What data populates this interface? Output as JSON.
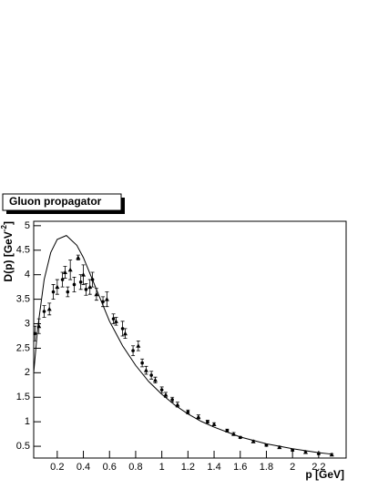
{
  "chart_data": {
    "type": "scatter",
    "title": "Gluon propagator",
    "xlabel": "p [GeV]",
    "ylabel": [
      "D(p) [GeV",
      "-2",
      "]"
    ],
    "xlim": [
      0.02,
      2.41
    ],
    "ylim": [
      0.26,
      5.09
    ],
    "xticks": [
      0.2,
      0.4,
      0.6,
      0.8,
      1,
      1.2,
      1.4,
      1.6,
      1.8,
      2,
      2.2
    ],
    "yticks": [
      0.5,
      1,
      1.5,
      2,
      2.5,
      3,
      3.5,
      4,
      4.5,
      5
    ],
    "curve": {
      "x": [
        0.02,
        0.05,
        0.1,
        0.15,
        0.2,
        0.27,
        0.35,
        0.4,
        0.5,
        0.6,
        0.7,
        0.8,
        0.9,
        1.0,
        1.1,
        1.2,
        1.3,
        1.4,
        1.6,
        1.8,
        2.0,
        2.2,
        2.3
      ],
      "y": [
        2.0,
        2.9,
        3.9,
        4.45,
        4.72,
        4.8,
        4.6,
        4.35,
        3.7,
        3.05,
        2.55,
        2.15,
        1.82,
        1.56,
        1.34,
        1.16,
        1.01,
        0.89,
        0.69,
        0.55,
        0.45,
        0.37,
        0.34
      ],
      "color": "#000000"
    },
    "points": {
      "x": [
        0.03,
        0.06,
        0.1,
        0.14,
        0.17,
        0.2,
        0.24,
        0.26,
        0.28,
        0.3,
        0.33,
        0.36,
        0.38,
        0.4,
        0.42,
        0.45,
        0.47,
        0.5,
        0.55,
        0.58,
        0.63,
        0.65,
        0.7,
        0.72,
        0.78,
        0.82,
        0.85,
        0.88,
        0.92,
        0.95,
        1.0,
        1.03,
        1.08,
        1.12,
        1.2,
        1.28,
        1.35,
        1.4,
        1.5,
        1.55,
        1.6,
        1.7,
        1.8,
        1.9,
        2.0,
        2.1,
        2.2,
        2.3
      ],
      "values": [
        2.8,
        2.95,
        3.25,
        3.3,
        3.65,
        3.75,
        3.9,
        4.05,
        3.65,
        4.1,
        3.8,
        4.35,
        3.85,
        4.0,
        3.7,
        3.75,
        3.9,
        3.6,
        3.45,
        3.5,
        3.1,
        3.05,
        2.9,
        2.8,
        2.45,
        2.55,
        2.2,
        2.05,
        1.95,
        1.85,
        1.65,
        1.55,
        1.45,
        1.35,
        1.2,
        1.1,
        1.0,
        0.95,
        0.82,
        0.75,
        0.68,
        0.6,
        0.52,
        0.48,
        0.42,
        0.38,
        0.35,
        0.33
      ],
      "errors": [
        0.15,
        0.15,
        0.12,
        0.12,
        0.15,
        0.15,
        0.15,
        0.12,
        0.1,
        0.2,
        0.15,
        0.05,
        0.15,
        0.2,
        0.12,
        0.15,
        0.15,
        0.12,
        0.1,
        0.15,
        0.1,
        0.08,
        0.15,
        0.1,
        0.1,
        0.1,
        0.08,
        0.08,
        0.08,
        0.06,
        0.06,
        0.05,
        0.05,
        0.05,
        0.04,
        0.04,
        0.03,
        0.03,
        0.03,
        0.03,
        0.02,
        0.02,
        0.02,
        0.02,
        0.02,
        0.02,
        0.02,
        0.02
      ],
      "color": "#000000"
    }
  }
}
